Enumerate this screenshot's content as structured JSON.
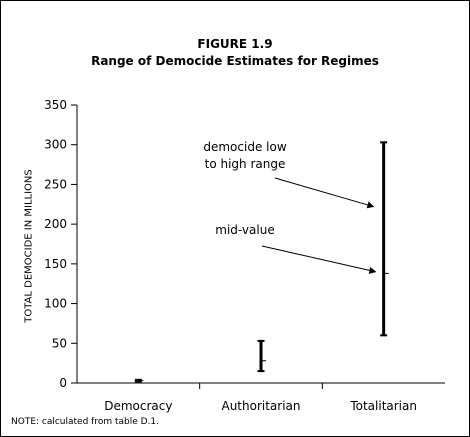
{
  "figure": {
    "number": "FIGURE 1.9",
    "title": "Range of Democide Estimates for Regimes",
    "note": "NOTE: calculated from table D.1."
  },
  "chart_data": {
    "type": "range",
    "title": "Range of Democide Estimates for Regimes",
    "xlabel": "",
    "ylabel": "TOTAL DEMOCIDE IN MILLIONS",
    "ylim": [
      0,
      350
    ],
    "yticks": [
      0,
      50,
      100,
      150,
      200,
      250,
      300,
      350
    ],
    "categories": [
      "Democracy",
      "Authoritarian",
      "Totalitarian"
    ],
    "series": [
      {
        "low": 2,
        "high": 4,
        "mid": 3
      },
      {
        "low": 15,
        "high": 53,
        "mid": 28
      },
      {
        "low": 60,
        "high": 303,
        "mid": 138
      }
    ],
    "annotations": [
      {
        "lines": [
          "democide low",
          "to high range"
        ]
      },
      {
        "lines": [
          "mid-value"
        ]
      }
    ],
    "color": "#000000"
  }
}
